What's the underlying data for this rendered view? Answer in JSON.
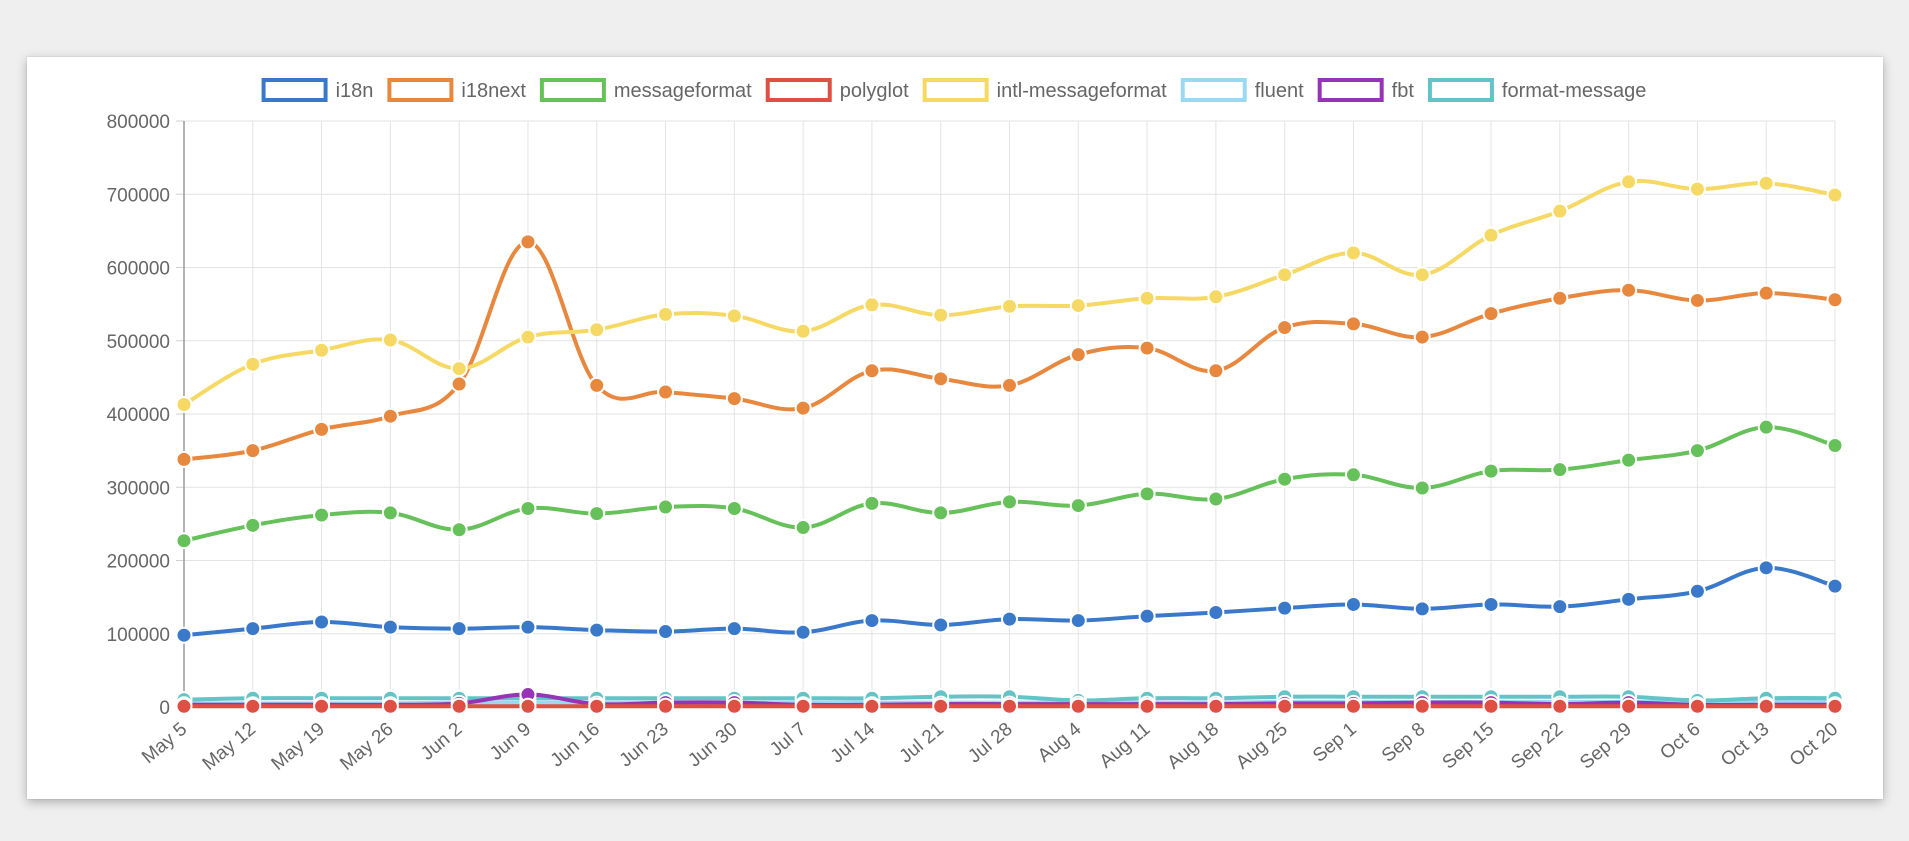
{
  "chart_data": {
    "type": "line",
    "title": "",
    "xlabel": "",
    "ylabel": "",
    "ylim": [
      0,
      800000
    ],
    "yticks": [
      0,
      100000,
      200000,
      300000,
      400000,
      500000,
      600000,
      700000,
      800000
    ],
    "grid": true,
    "legend_position": "top",
    "categories": [
      "May 5",
      "May 12",
      "May 19",
      "May 26",
      "Jun 2",
      "Jun 9",
      "Jun 16",
      "Jun 23",
      "Jun 30",
      "Jul 7",
      "Jul 14",
      "Jul 21",
      "Jul 28",
      "Aug 4",
      "Aug 11",
      "Aug 18",
      "Aug 25",
      "Sep 1",
      "Sep 8",
      "Sep 15",
      "Sep 22",
      "Sep 29",
      "Oct 6",
      "Oct 13",
      "Oct 20"
    ],
    "series": [
      {
        "name": "i18n",
        "color": "#3a78c9",
        "values": [
          98000,
          107000,
          116000,
          109000,
          107000,
          109000,
          105000,
          103000,
          107000,
          102000,
          118000,
          112000,
          120000,
          118000,
          124000,
          129000,
          135000,
          140000,
          134000,
          140000,
          137000,
          147000,
          158000,
          190000,
          165000
        ]
      },
      {
        "name": "i18next",
        "color": "#e8883f",
        "values": [
          338000,
          350000,
          379000,
          397000,
          441000,
          635000,
          439000,
          430000,
          421000,
          408000,
          459000,
          448000,
          439000,
          481000,
          490000,
          459000,
          518000,
          523000,
          505000,
          537000,
          558000,
          569000,
          555000,
          565000,
          556000
        ]
      },
      {
        "name": "messageformat",
        "color": "#66c15a",
        "values": [
          227000,
          248000,
          262000,
          265000,
          242000,
          271000,
          264000,
          273000,
          271000,
          245000,
          278000,
          265000,
          280000,
          275000,
          291000,
          284000,
          311000,
          317000,
          299000,
          322000,
          324000,
          337000,
          350000,
          382000,
          357000
        ]
      },
      {
        "name": "polyglot",
        "color": "#e04f43",
        "values": [
          1000,
          1000,
          1000,
          1000,
          1000,
          1000,
          1000,
          1000,
          1000,
          1000,
          1000,
          1000,
          1000,
          1000,
          1000,
          1000,
          1000,
          1000,
          1000,
          1000,
          1000,
          1000,
          1000,
          1000,
          1000
        ]
      },
      {
        "name": "intl-messageformat",
        "color": "#f6d964",
        "values": [
          413000,
          468000,
          487000,
          501000,
          462000,
          505000,
          515000,
          536000,
          534000,
          513000,
          549000,
          535000,
          547000,
          548000,
          558000,
          560000,
          590000,
          620000,
          590000,
          644000,
          677000,
          717000,
          707000,
          715000,
          699000
        ]
      },
      {
        "name": "fluent",
        "color": "#9bd9f2",
        "values": [
          5000,
          5000,
          5000,
          5000,
          6000,
          6000,
          6000,
          6000,
          6000,
          6000,
          6000,
          6000,
          6000,
          6000,
          6000,
          6000,
          7000,
          7000,
          7000,
          7000,
          7000,
          7000,
          7000,
          7000,
          7000
        ]
      },
      {
        "name": "fbt",
        "color": "#9634b5",
        "values": [
          3000,
          3000,
          3000,
          3000,
          5000,
          17000,
          4000,
          6000,
          6000,
          3000,
          3000,
          4000,
          4000,
          4000,
          4000,
          4000,
          5000,
          5000,
          6000,
          6000,
          4000,
          6000,
          3000,
          3000,
          3000
        ]
      },
      {
        "name": "format-message",
        "color": "#63c3c6",
        "values": [
          10000,
          12000,
          12000,
          12000,
          12000,
          12000,
          12000,
          12000,
          12000,
          12000,
          12000,
          14000,
          14000,
          9000,
          12000,
          12000,
          14000,
          14000,
          14000,
          14000,
          14000,
          14000,
          9000,
          12000,
          12000
        ]
      }
    ]
  }
}
